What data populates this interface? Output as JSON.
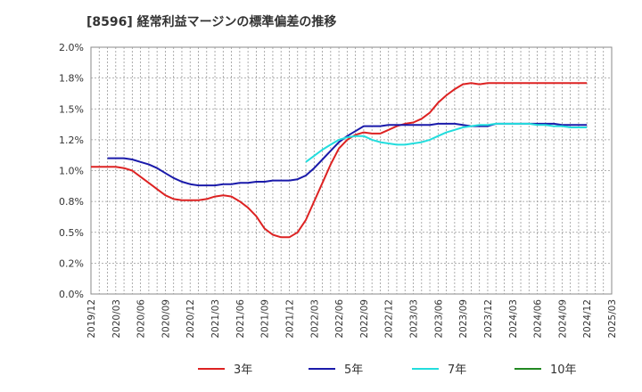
{
  "title": "[8596]  経常利益マージンの標準偏差の推移",
  "chart_data": {
    "type": "line",
    "title": "[8596]  経常利益マージンの標準偏差の推移",
    "xlabel": "",
    "ylabel": "",
    "ylim": [
      0,
      2.0
    ],
    "y_ticks": [
      "0.0%",
      "0.2%",
      "0.5%",
      "0.8%",
      "1.0%",
      "1.2%",
      "1.5%",
      "1.8%",
      "2.0%"
    ],
    "x_ticks": [
      "2019/12",
      "2020/03",
      "2020/06",
      "2020/09",
      "2020/12",
      "2021/03",
      "2021/06",
      "2021/09",
      "2021/12",
      "2022/03",
      "2022/06",
      "2022/09",
      "2022/12",
      "2023/03",
      "2023/06",
      "2023/09",
      "2023/12",
      "2024/03",
      "2024/06",
      "2024/09",
      "2024/12",
      "2025/03"
    ],
    "grid": true,
    "legend_position": "bottom",
    "series": [
      {
        "name": "3年",
        "color": "#dd2222",
        "points": [
          [
            "2019/12",
            1.03
          ],
          [
            "2020/01",
            1.03
          ],
          [
            "2020/02",
            1.03
          ],
          [
            "2020/03",
            1.03
          ],
          [
            "2020/04",
            1.02
          ],
          [
            "2020/05",
            1.0
          ],
          [
            "2020/06",
            0.95
          ],
          [
            "2020/07",
            0.9
          ],
          [
            "2020/08",
            0.85
          ],
          [
            "2020/09",
            0.8
          ],
          [
            "2020/10",
            0.77
          ],
          [
            "2020/11",
            0.76
          ],
          [
            "2020/12",
            0.76
          ],
          [
            "2021/01",
            0.76
          ],
          [
            "2021/02",
            0.77
          ],
          [
            "2021/03",
            0.79
          ],
          [
            "2021/04",
            0.8
          ],
          [
            "2021/05",
            0.79
          ],
          [
            "2021/06",
            0.75
          ],
          [
            "2021/07",
            0.7
          ],
          [
            "2021/08",
            0.63
          ],
          [
            "2021/09",
            0.53
          ],
          [
            "2021/10",
            0.48
          ],
          [
            "2021/11",
            0.46
          ],
          [
            "2021/12",
            0.46
          ],
          [
            "2022/01",
            0.5
          ],
          [
            "2022/02",
            0.6
          ],
          [
            "2022/03",
            0.75
          ],
          [
            "2022/04",
            0.9
          ],
          [
            "2022/05",
            1.05
          ],
          [
            "2022/06",
            1.18
          ],
          [
            "2022/07",
            1.25
          ],
          [
            "2022/08",
            1.29
          ],
          [
            "2022/09",
            1.31
          ],
          [
            "2022/10",
            1.3
          ],
          [
            "2022/11",
            1.3
          ],
          [
            "2022/12",
            1.33
          ],
          [
            "2023/01",
            1.36
          ],
          [
            "2023/02",
            1.38
          ],
          [
            "2023/03",
            1.39
          ],
          [
            "2023/04",
            1.42
          ],
          [
            "2023/05",
            1.47
          ],
          [
            "2023/06",
            1.55
          ],
          [
            "2023/07",
            1.61
          ],
          [
            "2023/08",
            1.66
          ],
          [
            "2023/09",
            1.7
          ],
          [
            "2023/10",
            1.71
          ],
          [
            "2023/11",
            1.7
          ],
          [
            "2023/12",
            1.71
          ],
          [
            "2024/01",
            1.71
          ],
          [
            "2024/02",
            1.71
          ],
          [
            "2024/03",
            1.71
          ],
          [
            "2024/04",
            1.71
          ],
          [
            "2024/05",
            1.71
          ],
          [
            "2024/06",
            1.71
          ],
          [
            "2024/07",
            1.71
          ],
          [
            "2024/08",
            1.71
          ],
          [
            "2024/09",
            1.71
          ],
          [
            "2024/10",
            1.71
          ],
          [
            "2024/11",
            1.71
          ],
          [
            "2024/12",
            1.71
          ]
        ]
      },
      {
        "name": "5年",
        "color": "#1a1aaa",
        "points": [
          [
            "2020/02",
            1.1
          ],
          [
            "2020/03",
            1.1
          ],
          [
            "2020/04",
            1.1
          ],
          [
            "2020/05",
            1.09
          ],
          [
            "2020/06",
            1.07
          ],
          [
            "2020/07",
            1.05
          ],
          [
            "2020/08",
            1.02
          ],
          [
            "2020/09",
            0.98
          ],
          [
            "2020/10",
            0.94
          ],
          [
            "2020/11",
            0.91
          ],
          [
            "2020/12",
            0.89
          ],
          [
            "2021/01",
            0.88
          ],
          [
            "2021/02",
            0.88
          ],
          [
            "2021/03",
            0.88
          ],
          [
            "2021/04",
            0.89
          ],
          [
            "2021/05",
            0.89
          ],
          [
            "2021/06",
            0.9
          ],
          [
            "2021/07",
            0.9
          ],
          [
            "2021/08",
            0.91
          ],
          [
            "2021/09",
            0.91
          ],
          [
            "2021/10",
            0.92
          ],
          [
            "2021/11",
            0.92
          ],
          [
            "2021/12",
            0.92
          ],
          [
            "2022/01",
            0.93
          ],
          [
            "2022/02",
            0.96
          ],
          [
            "2022/03",
            1.02
          ],
          [
            "2022/04",
            1.09
          ],
          [
            "2022/05",
            1.16
          ],
          [
            "2022/06",
            1.23
          ],
          [
            "2022/07",
            1.28
          ],
          [
            "2022/08",
            1.32
          ],
          [
            "2022/09",
            1.36
          ],
          [
            "2022/10",
            1.36
          ],
          [
            "2022/11",
            1.36
          ],
          [
            "2022/12",
            1.37
          ],
          [
            "2023/01",
            1.37
          ],
          [
            "2023/02",
            1.37
          ],
          [
            "2023/03",
            1.37
          ],
          [
            "2023/04",
            1.37
          ],
          [
            "2023/05",
            1.37
          ],
          [
            "2023/06",
            1.38
          ],
          [
            "2023/07",
            1.38
          ],
          [
            "2023/08",
            1.38
          ],
          [
            "2023/09",
            1.37
          ],
          [
            "2023/10",
            1.36
          ],
          [
            "2023/11",
            1.36
          ],
          [
            "2023/12",
            1.36
          ],
          [
            "2024/01",
            1.38
          ],
          [
            "2024/02",
            1.38
          ],
          [
            "2024/03",
            1.38
          ],
          [
            "2024/04",
            1.38
          ],
          [
            "2024/05",
            1.38
          ],
          [
            "2024/06",
            1.38
          ],
          [
            "2024/07",
            1.38
          ],
          [
            "2024/08",
            1.38
          ],
          [
            "2024/09",
            1.37
          ],
          [
            "2024/10",
            1.37
          ],
          [
            "2024/11",
            1.37
          ],
          [
            "2024/12",
            1.37
          ]
        ]
      },
      {
        "name": "7年",
        "color": "#22dddd",
        "points": [
          [
            "2022/02",
            1.07
          ],
          [
            "2022/03",
            1.12
          ],
          [
            "2022/04",
            1.17
          ],
          [
            "2022/05",
            1.21
          ],
          [
            "2022/06",
            1.25
          ],
          [
            "2022/07",
            1.27
          ],
          [
            "2022/08",
            1.28
          ],
          [
            "2022/09",
            1.28
          ],
          [
            "2022/10",
            1.25
          ],
          [
            "2022/11",
            1.23
          ],
          [
            "2022/12",
            1.22
          ],
          [
            "2023/01",
            1.21
          ],
          [
            "2023/02",
            1.21
          ],
          [
            "2023/03",
            1.22
          ],
          [
            "2023/04",
            1.23
          ],
          [
            "2023/05",
            1.25
          ],
          [
            "2023/06",
            1.28
          ],
          [
            "2023/07",
            1.31
          ],
          [
            "2023/08",
            1.33
          ],
          [
            "2023/09",
            1.35
          ],
          [
            "2023/10",
            1.36
          ],
          [
            "2023/11",
            1.37
          ],
          [
            "2023/12",
            1.37
          ],
          [
            "2024/01",
            1.38
          ],
          [
            "2024/02",
            1.38
          ],
          [
            "2024/03",
            1.38
          ],
          [
            "2024/04",
            1.38
          ],
          [
            "2024/05",
            1.38
          ],
          [
            "2024/06",
            1.37
          ],
          [
            "2024/07",
            1.37
          ],
          [
            "2024/08",
            1.36
          ],
          [
            "2024/09",
            1.36
          ],
          [
            "2024/10",
            1.35
          ],
          [
            "2024/11",
            1.35
          ],
          [
            "2024/12",
            1.35
          ]
        ]
      },
      {
        "name": "10年",
        "color": "#228822",
        "points": []
      }
    ]
  }
}
